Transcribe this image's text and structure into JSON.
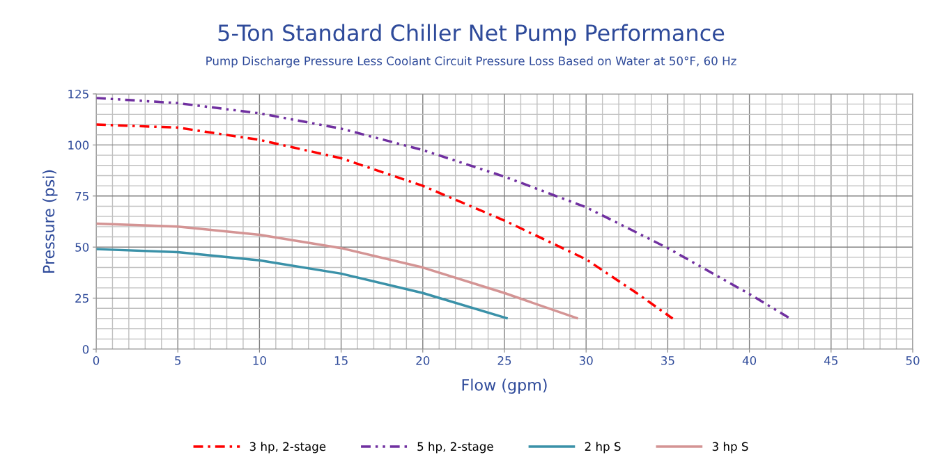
{
  "chart_data": {
    "type": "line",
    "title": "5-Ton Standard Chiller Net Pump Performance",
    "subtitle": "Pump Discharge Pressure Less Coolant Circuit Pressure Loss Based on Water at 50°F, 60 Hz",
    "xlabel": "Flow (gpm)",
    "ylabel": "Pressure (psi)",
    "xlim": [
      0,
      50
    ],
    "xticks": [
      0,
      5,
      10,
      15,
      20,
      25,
      30,
      35,
      40,
      45,
      50
    ],
    "ylim": [
      0,
      125
    ],
    "yticks": [
      0,
      25,
      50,
      75,
      100,
      125
    ],
    "grid": true,
    "legend": "bottom",
    "marker": "none",
    "series": [
      {
        "name": "3 hp, 2-stage",
        "color": "#ff0000",
        "line_style": "dashdot",
        "x": [
          0,
          5,
          10,
          15,
          20,
          25,
          30,
          33,
          35.3
        ],
        "values": [
          110,
          108.5,
          102.5,
          93.5,
          80,
          63,
          44,
          28,
          15
        ]
      },
      {
        "name": "5 hp, 2-stage",
        "color": "#7030a0",
        "line_style": "dashdotdot",
        "x": [
          0,
          5,
          10,
          15,
          20,
          25,
          30,
          35,
          40,
          42.5
        ],
        "values": [
          123,
          120.5,
          115.5,
          108,
          97.5,
          84.5,
          69.5,
          49.5,
          27,
          15
        ]
      },
      {
        "name": "2 hp S",
        "color": "#3a91a8",
        "line_style": "solid",
        "x": [
          0,
          5,
          10,
          15,
          20,
          25.2
        ],
        "values": [
          49,
          47.5,
          43.5,
          37,
          27.5,
          15
        ]
      },
      {
        "name": "3 hp S",
        "color": "#d49494",
        "line_style": "solid",
        "x": [
          0,
          5,
          10,
          15,
          20,
          25,
          29.5
        ],
        "values": [
          61.5,
          60,
          56,
          49.5,
          40,
          27.5,
          15
        ]
      }
    ]
  }
}
